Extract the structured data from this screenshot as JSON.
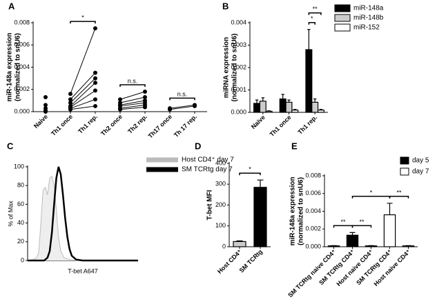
{
  "chart_data": [
    {
      "type": "strip",
      "label": "A",
      "ylabel": [
        "miR-148a expression",
        "(normalized to snU6)"
      ],
      "categories": [
        "Naive",
        "Th1 once",
        "Th1 rep.",
        "Th2 once",
        "Th2 rep.",
        "Th17 once",
        "Th 17 rep."
      ],
      "values": [
        [
          0.0013,
          0.0006,
          0.0003,
          0.0001,
          0.0
        ],
        [
          0.0016,
          0.0011,
          0.0008,
          0.0005,
          0.0004,
          0.0003,
          0.0002
        ],
        [
          0.0075,
          0.0035,
          0.003,
          0.0026,
          0.0019,
          0.0011,
          0.0005
        ],
        [
          0.0011,
          0.0008,
          0.0006,
          0.0005,
          0.0003,
          0.0002
        ],
        [
          0.0018,
          0.0013,
          0.001,
          0.0008,
          0.0006,
          0.0004
        ],
        [
          0.0003,
          0.0002
        ],
        [
          0.0006,
          0.0005
        ]
      ],
      "paired": [
        [
          1,
          2
        ],
        [
          3,
          4
        ],
        [
          5,
          6
        ]
      ],
      "color": "#000000",
      "ylim": [
        0,
        0.008
      ],
      "yticks": [
        {
          "value": 0,
          "label": "0.000"
        },
        {
          "value": 0.002,
          "label": "0.002"
        },
        {
          "value": 0.004,
          "label": "0.004"
        },
        {
          "value": 0.006,
          "label": "0.006"
        },
        {
          "value": 0.008,
          "label": "0.008"
        }
      ],
      "annotations": [
        {
          "text": "*",
          "from": 1,
          "to": 2
        },
        {
          "text": "n.s.",
          "from": 3,
          "to": 4
        },
        {
          "text": "n.s.",
          "from": 5,
          "to": 6
        }
      ]
    },
    {
      "type": "bar",
      "label": "B",
      "ylabel": [
        "miRNA expression",
        "(normalized to snU6)"
      ],
      "categories": [
        "Naive",
        "Th1 once",
        "Th1 rep."
      ],
      "series": [
        {
          "name": "miR-148a",
          "color": "#000000",
          "values": [
            0.0004,
            0.0006,
            0.0028
          ],
          "errors": [
            0.00015,
            0.0002,
            0.0009
          ]
        },
        {
          "name": "miR-148b",
          "color": "#cccccc",
          "values": [
            0.0005,
            0.00045,
            0.00045
          ],
          "errors": [
            0.00015,
            0.0001,
            0.00015
          ]
        },
        {
          "name": "miR-152",
          "color": "#ffffff",
          "values": [
            5e-05,
            0.0001,
            0.0001
          ],
          "errors": [
            2e-05,
            3e-05,
            3e-05
          ]
        }
      ],
      "ylim": [
        0,
        0.004
      ],
      "yticks": [
        {
          "value": 0,
          "label": "0.000"
        },
        {
          "value": 0.001,
          "label": "0.001"
        },
        {
          "value": 0.002,
          "label": "0.002"
        },
        {
          "value": 0.003,
          "label": "0.003"
        },
        {
          "value": 0.004,
          "label": "0.004"
        }
      ],
      "annotations": [
        {
          "text": "*",
          "category": 2,
          "from": 0,
          "to": 1
        },
        {
          "text": "**",
          "category": 2,
          "from": 0,
          "to": 2
        }
      ]
    },
    {
      "type": "area",
      "label": "C",
      "ylabel": [
        "% of Max"
      ],
      "xlabel": "T-bet A647",
      "xlim": [
        0,
        100
      ],
      "ylim": [
        0,
        100
      ],
      "yticks": [
        0,
        20,
        40,
        60,
        80,
        100
      ],
      "series": [
        {
          "name": "Host CD4⁺ day 7",
          "color": "#bbbbbb",
          "fill": "#eeeeee",
          "x": [
            0,
            5,
            8,
            10,
            12,
            14,
            16,
            18,
            20,
            22,
            24,
            26,
            28,
            30,
            33,
            38,
            45,
            100
          ],
          "values": [
            0,
            1,
            3,
            8,
            40,
            75,
            78,
            70,
            88,
            90,
            80,
            55,
            25,
            10,
            3,
            1,
            0,
            0
          ]
        },
        {
          "name": "SM TCRtg day 7",
          "color": "#000000",
          "x": [
            0,
            15,
            18,
            20,
            22,
            24,
            26,
            28,
            30,
            32,
            34,
            36,
            38,
            40,
            44,
            50,
            100
          ],
          "values": [
            0,
            0,
            3,
            10,
            30,
            60,
            88,
            100,
            92,
            70,
            45,
            25,
            12,
            5,
            1,
            0,
            0
          ]
        }
      ]
    },
    {
      "type": "bar",
      "label": "D",
      "ylabel": [
        "T-bet MFI"
      ],
      "categories": [
        "Host CD4⁺",
        "SM TCRtg"
      ],
      "series": [
        {
          "colors": [
            "#cccccc",
            "#000000"
          ],
          "values": [
            25,
            285
          ],
          "errors": [
            3,
            35
          ]
        }
      ],
      "ylim": [
        0,
        400
      ],
      "yticks": [
        0,
        100,
        200,
        300,
        400
      ],
      "annotations": [
        {
          "text": "*",
          "from": 0,
          "to": 1
        }
      ]
    },
    {
      "type": "bar",
      "label": "E",
      "ylabel": [
        "miR-148a expression",
        "(normalized to snU6)"
      ],
      "categories": [
        "SM TCRtg naive CD4⁺",
        "SM TCRtg CD4⁺",
        "Host naive CD4⁺",
        "SM TCRtg CD4⁺",
        "Host naive CD4⁺"
      ],
      "series": [
        {
          "name": "day 5",
          "color": "#000000",
          "values": [
            0.0001,
            0.0013,
            0.0001,
            null,
            null
          ],
          "errors": [
            3e-05,
            0.0003,
            3e-05,
            null,
            null
          ]
        },
        {
          "name": "day 7",
          "color": "#ffffff",
          "values": [
            null,
            null,
            null,
            0.0036,
            0.0001
          ],
          "errors": [
            null,
            null,
            null,
            0.0013,
            3e-05
          ]
        }
      ],
      "ylim": [
        0,
        0.008
      ],
      "yticks": [
        {
          "value": 0,
          "label": "0.000"
        },
        {
          "value": 0.002,
          "label": "0.002"
        },
        {
          "value": 0.004,
          "label": "0.004"
        },
        {
          "value": 0.006,
          "label": "0.006"
        },
        {
          "value": 0.008,
          "label": "0.008"
        }
      ],
      "annotations": [
        {
          "text": "**",
          "from": 0,
          "to": 1
        },
        {
          "text": "**",
          "from": 1,
          "to": 2
        },
        {
          "text": "**",
          "from": 3,
          "to": 4
        },
        {
          "text": "*",
          "from": 1,
          "to": 3
        }
      ]
    }
  ]
}
